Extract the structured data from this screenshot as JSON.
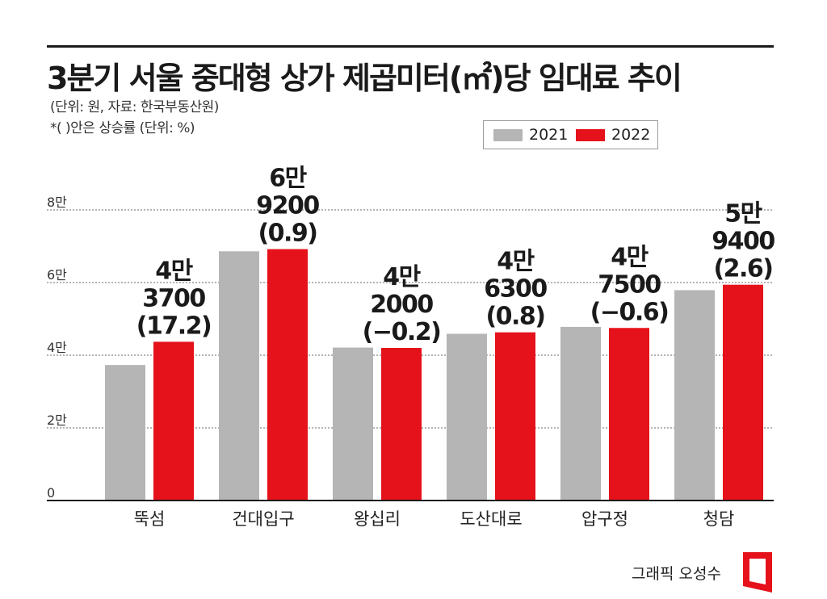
{
  "title": "3분기 서울 중대형 상가 제곱미터(㎡)당 임대료 추이",
  "notes": [
    "(단위: 원, 자료: 한국부동산원)",
    "*( )안은 상승률 (단위: %)"
  ],
  "credit": "그래픽 오성수",
  "colors": {
    "series_2021": "#b5b5b5",
    "series_2022": "#e5121b",
    "logo": "#e5121b"
  },
  "icons": {
    "logo": "newspaper-logo-icon"
  },
  "chart_data": {
    "type": "bar",
    "title": "3분기 서울 중대형 상가 제곱미터(㎡)당 임대료 추이",
    "categories": [
      "뚝섬",
      "건대입구",
      "왕십리",
      "도산대로",
      "압구정",
      "청담"
    ],
    "series": [
      {
        "name": "2021",
        "values": [
          37300,
          68600,
          42100,
          45900,
          47800,
          57900
        ]
      },
      {
        "name": "2022",
        "values": [
          43700,
          69200,
          42000,
          46300,
          47500,
          59400
        ]
      }
    ],
    "ylim": [
      0,
      80000
    ],
    "yticks": [
      {
        "value": 0,
        "label": "0"
      },
      {
        "value": 20000,
        "label": "2만"
      },
      {
        "value": 40000,
        "label": "4만"
      },
      {
        "value": 60000,
        "label": "6만"
      },
      {
        "value": 80000,
        "label": "8만"
      }
    ],
    "data_labels": [
      [
        "4만",
        "3700",
        "(17.2)"
      ],
      [
        "6만",
        "9200",
        "(0.9)"
      ],
      [
        "4만",
        "2000",
        "(−0.2)"
      ],
      [
        "4만",
        "6300",
        "(0.8)"
      ],
      [
        "4만",
        "7500",
        "(−0.6)"
      ],
      [
        "5만",
        "9400",
        "(2.6)"
      ]
    ],
    "grid": true,
    "legend": "top-right"
  }
}
